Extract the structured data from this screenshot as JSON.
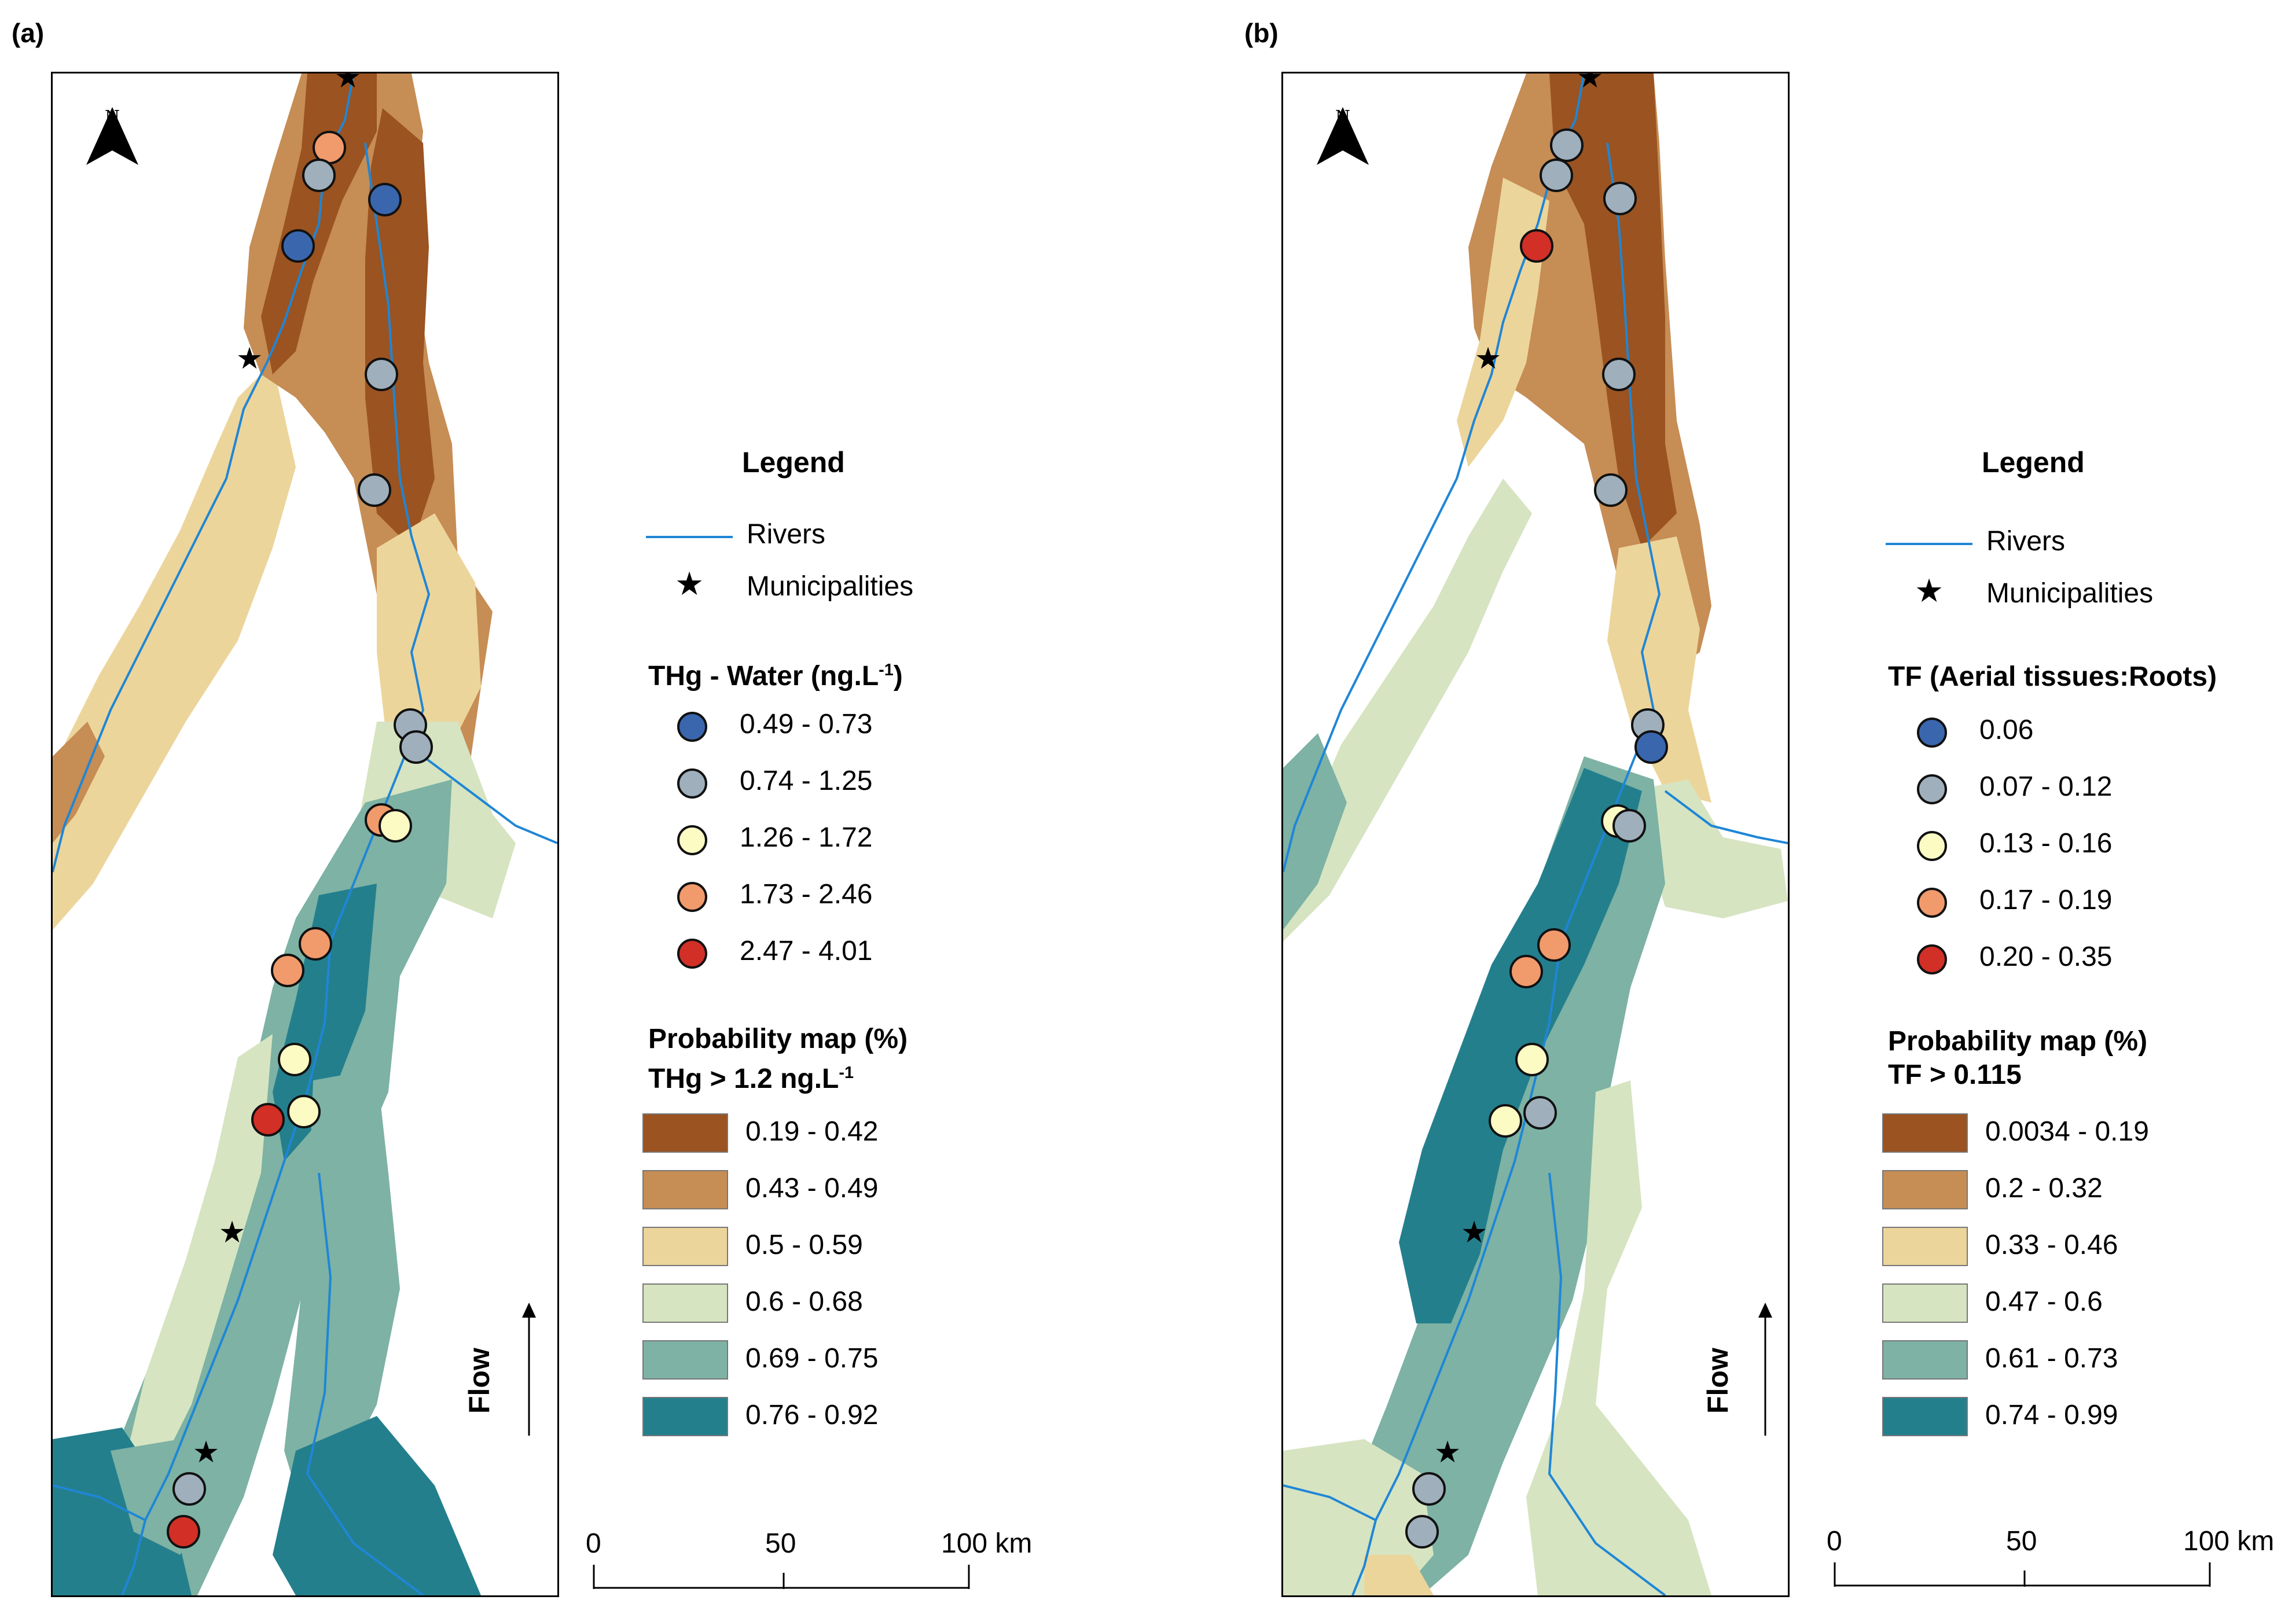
{
  "colors": {
    "p1": "#9a5321",
    "p2": "#c68d55",
    "p3": "#ecd59b",
    "p4": "#d6e4c1",
    "p5": "#7db2a4",
    "p6": "#247f8d",
    "river": "#1f86d6",
    "dark_blue": "#3a66ae",
    "grey": "#9fafbb",
    "pale_yellow": "#fdfbc4",
    "salmon": "#f19a6c",
    "red": "#d22f27"
  },
  "panels": [
    {
      "label": "(a)",
      "north": "N",
      "flow": "Flow",
      "legend": {
        "title": "Legend",
        "rivers": "Rivers",
        "municipalities": "Municipalities",
        "points_title": "THg - Water (ng.L",
        "points_title_sup": "-1",
        "points_title_end": ")",
        "points": [
          "0.49 - 0.73",
          "0.74 - 1.25",
          "1.26 - 1.72",
          "1.73 - 2.46",
          "2.47 - 4.01"
        ],
        "prob_title_1": "Probability map (%)",
        "prob_title_2": "THg > 1.2 ng.L",
        "prob_title_2_sup": "-1",
        "prob": [
          "0.19 - 0.42",
          "0.43 - 0.49",
          "0.5 - 0.59",
          "0.6 - 0.68",
          "0.69 - 0.75",
          "0.76 - 0.92"
        ]
      },
      "scale": [
        "0",
        "50",
        "100 km"
      ]
    },
    {
      "label": "(b)",
      "north": "N",
      "flow": "Flow",
      "legend": {
        "title": "Legend",
        "rivers": "Rivers",
        "municipalities": "Municipalities",
        "points_title": "TF (Aerial tissues:Roots)",
        "points": [
          "0.06",
          "0.07 - 0.12",
          "0.13 - 0.16",
          "0.17 - 0.19",
          "0.20 - 0.35"
        ],
        "prob_title_1": "Probability map (%)",
        "prob_title_2": "TF > 0.115",
        "prob": [
          "0.0034 - 0.19",
          "0.2 - 0.32",
          "0.33 - 0.46",
          "0.47 - 0.6",
          "0.61 - 0.73",
          "0.74 - 0.99"
        ]
      },
      "scale": [
        "0",
        "50",
        "100 km"
      ]
    }
  ]
}
